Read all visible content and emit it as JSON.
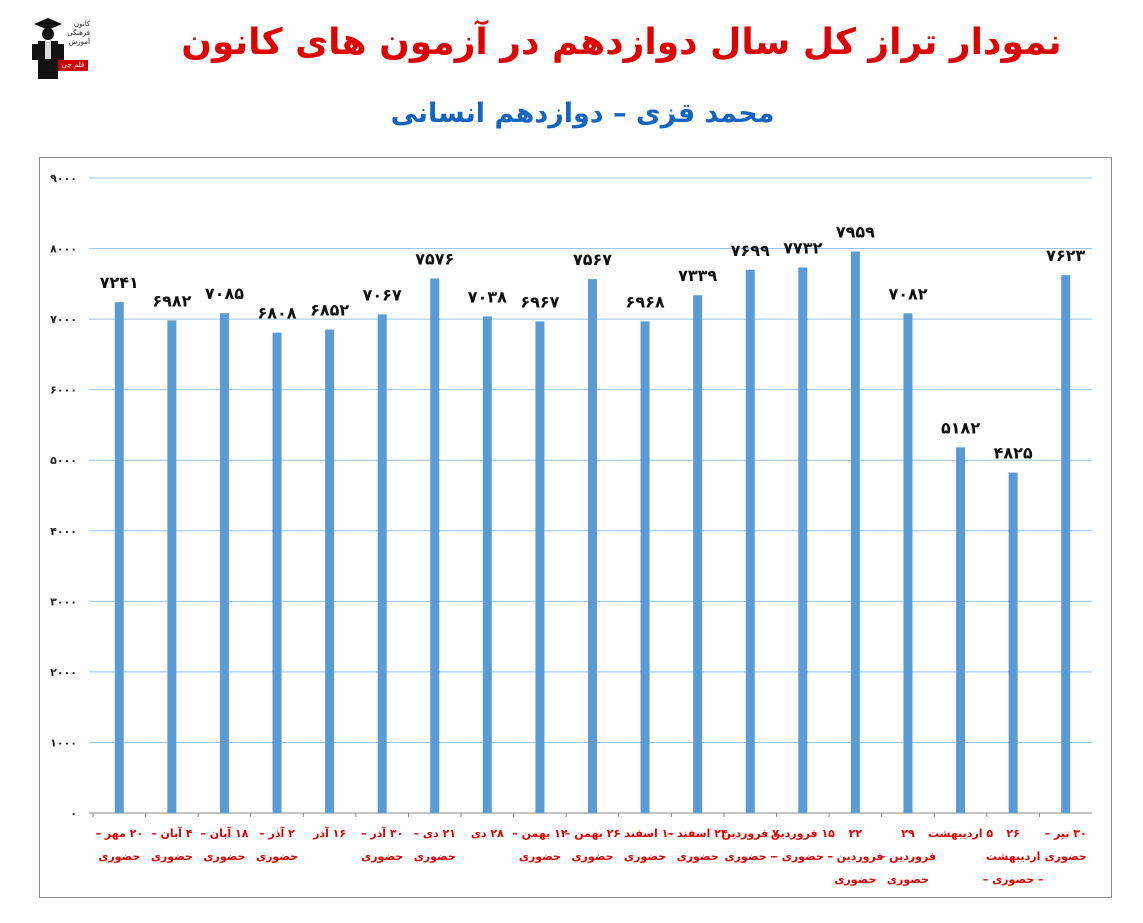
{
  "header": {
    "title": "نمودار تراز کل سال دوازدهم در آزمون های کانون",
    "subtitle": "محمد قزی – دوازدهم انسانی",
    "logo_text": "کانون فرهنگی آموزش",
    "logo_tag": "قلم چی"
  },
  "colors": {
    "title": "#e00000",
    "subtitle": "#1565c0",
    "bar": "#5b9bd5",
    "grid": "#9dc3e6",
    "category_label": "#e00000"
  },
  "chart_data": {
    "type": "bar",
    "title": "نمودار تراز کل سال دوازدهم در آزمون های کانون",
    "subtitle": "محمد قزی – دوازدهم انسانی",
    "ylim": [
      0,
      9000
    ],
    "yticks": [
      "۰",
      "۱۰۰۰",
      "۲۰۰۰",
      "۳۰۰۰",
      "۴۰۰۰",
      "۵۰۰۰",
      "۶۰۰۰",
      "۷۰۰۰",
      "۸۰۰۰",
      "۹۰۰۰"
    ],
    "grid": true,
    "categories": [
      [
        "۲۰ مهر –",
        "حضوری"
      ],
      [
        "۴ آبان –",
        "حضوری"
      ],
      [
        "۱۸ آبان –",
        "حضوری"
      ],
      [
        "۲ آذر –",
        "حضوری"
      ],
      [
        "۱۶ آذر"
      ],
      [
        "۳۰ آذر –",
        "حضوری"
      ],
      [
        "۲۱ دی –",
        "حضوری"
      ],
      [
        "۲۸ دی"
      ],
      [
        "۱۲ بهمن –",
        "حضوری"
      ],
      [
        "۲۶ بهمن –",
        "حضوری"
      ],
      [
        "۱۰ اسفند –",
        "حضوری"
      ],
      [
        "۲۴ اسفند –",
        "حضوری"
      ],
      [
        "۷ فروردین",
        "– حضوری"
      ],
      [
        "۱۵ فروردین",
        "– حضوری –"
      ],
      [
        "۲۲",
        "فروردین –",
        "حضوری"
      ],
      [
        "۲۹",
        "فروردین –",
        "حضوری"
      ],
      [
        "۵ اردیبهشت"
      ],
      [
        "۲۶",
        "اردیبهشت",
        "– حضوری –"
      ],
      [
        "۳۰ تیر –",
        "حضوری"
      ]
    ],
    "values": [
      7241,
      6982,
      7085,
      6808,
      6852,
      7067,
      7576,
      7038,
      6967,
      7567,
      6968,
      7339,
      7699,
      7732,
      7959,
      7082,
      5182,
      4825,
      7623
    ],
    "value_labels": [
      "۷۲۴۱",
      "۶۹۸۲",
      "۷۰۸۵",
      "۶۸۰۸",
      "۶۸۵۲",
      "۷۰۶۷",
      "۷۵۷۶",
      "۷۰۳۸",
      "۶۹۶۷",
      "۷۵۶۷",
      "۶۹۶۸",
      "۷۳۳۹",
      "۷۶۹۹",
      "۷۷۳۲",
      "۷۹۵۹",
      "۷۰۸۲",
      "۵۱۸۲",
      "۴۸۲۵",
      "۷۶۲۳"
    ]
  }
}
